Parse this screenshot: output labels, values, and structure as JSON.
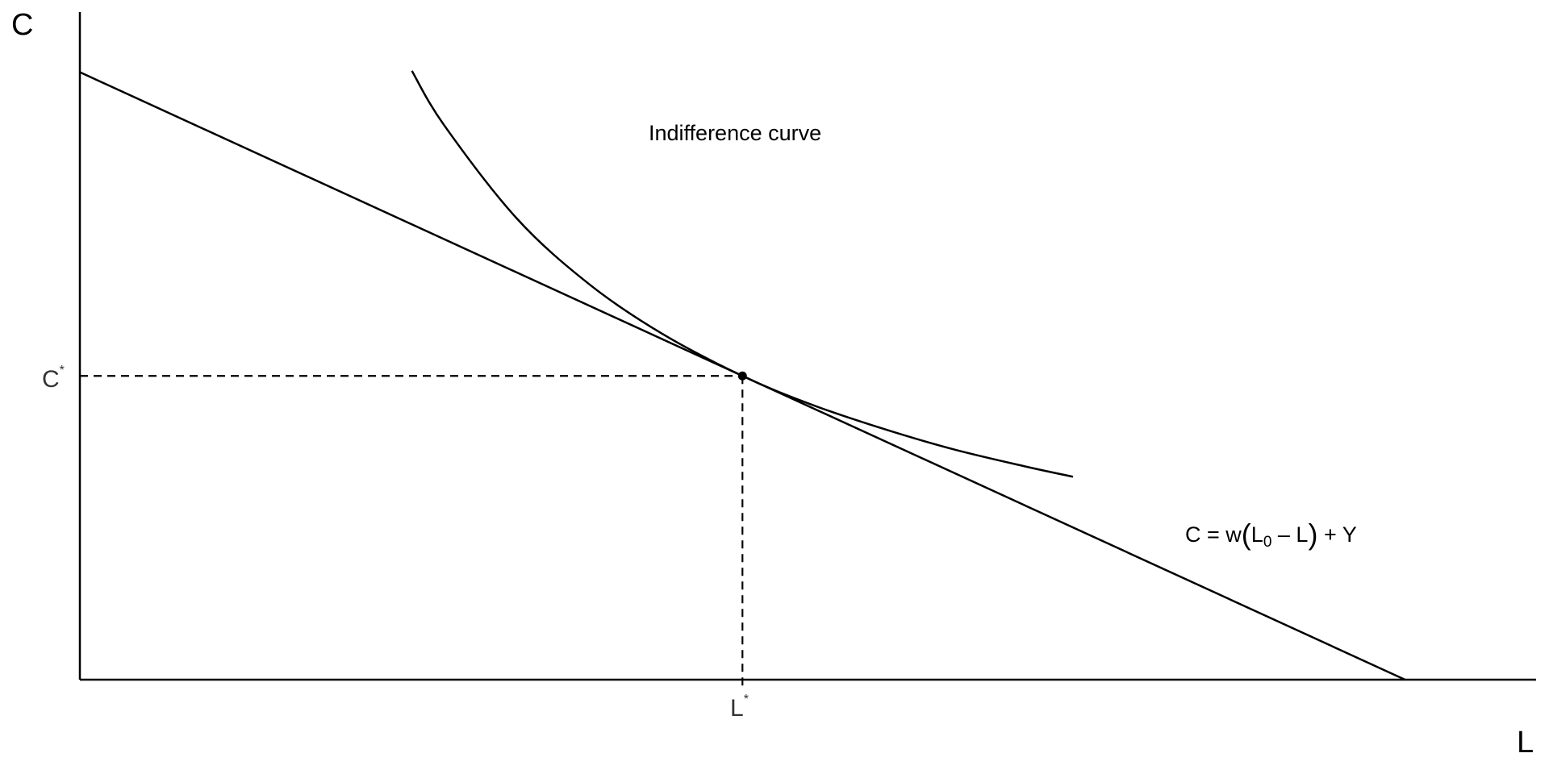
{
  "chart_data": {
    "type": "line",
    "title": "",
    "xlabel": "L",
    "ylabel": "C",
    "xlim": [
      0,
      100
    ],
    "ylim": [
      0,
      100
    ],
    "grid": false,
    "budget_line": {
      "label": "C = w(L0 − L) + Y",
      "points": [
        [
          0,
          91
        ],
        [
          91,
          0
        ]
      ]
    },
    "indifference_curve": {
      "label": "Indifference curve",
      "points": [
        [
          22.8,
          91.2
        ],
        [
          25,
          83.1
        ],
        [
          30,
          69.1
        ],
        [
          35,
          59.2
        ],
        [
          40,
          51.8
        ],
        [
          45.5,
          45.5
        ],
        [
          50,
          41.4
        ],
        [
          55,
          37.7
        ],
        [
          60,
          34.5
        ],
        [
          65,
          31.9
        ],
        [
          68.2,
          30.4
        ]
      ]
    },
    "optimum": {
      "L": 45.5,
      "C": 45.5,
      "L_label": "L",
      "C_label": "C",
      "star": "*"
    },
    "equation": {
      "lhs": "C = w",
      "open": "(",
      "L": "L",
      "sub": "0",
      "mid": " – L",
      "close": ")",
      "rhs": " + Y"
    }
  }
}
